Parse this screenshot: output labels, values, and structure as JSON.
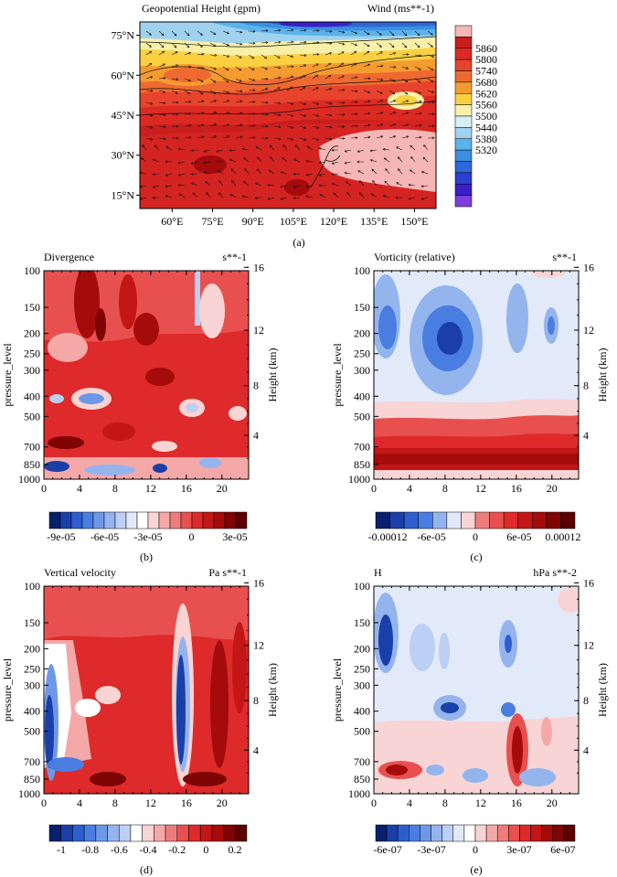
{
  "figure_labels": [
    "(a)",
    "(b)",
    "(c)",
    "(d)",
    "(e)"
  ],
  "chart_data": [
    {
      "id": "a",
      "type": "heatmap",
      "title": "Geopotential Height (gpm)",
      "title_right": "Wind (ms**-1)",
      "xlabel": "",
      "ylabel": "",
      "xlim": [
        48,
        158
      ],
      "ylim": [
        10,
        80
      ],
      "x_ticks": [
        60,
        75,
        90,
        105,
        120,
        135,
        150
      ],
      "x_tick_labels": [
        "60°E",
        "75°E",
        "90°E",
        "105°E",
        "120°E",
        "135°E",
        "150°E"
      ],
      "y_ticks": [
        15,
        30,
        45,
        60,
        75
      ],
      "y_tick_labels": [
        "15°N",
        "30°N",
        "45°N",
        "60°N",
        "75°N"
      ],
      "colorbar_labels": [
        "5860",
        "5800",
        "5740",
        "5680",
        "5620",
        "5560",
        "5500",
        "5440",
        "5380",
        "5320"
      ],
      "colorbar_colors": [
        "#f6b6b6",
        "#c81e1e",
        "#dc2a22",
        "#e8432c",
        "#ef6a30",
        "#f59c30",
        "#fbd040",
        "#f9f0a8",
        "#d6eef6",
        "#9fd2ef",
        "#5bb3ea",
        "#3c8ee0",
        "#2e68d6",
        "#2c3fd0",
        "#3a1ec8",
        "#7b3fe0"
      ],
      "contour_levels_note": "5320 to 5860 gpm every 60",
      "grid": false,
      "legend": "right"
    },
    {
      "id": "b",
      "type": "heatmap",
      "title": "Divergence",
      "title_right": "s**-1",
      "xlabel": "",
      "ylabel": "pressure_level",
      "ylabel_right": "Height (km)",
      "x": [
        0,
        4,
        8,
        12,
        16,
        20
      ],
      "xlim": [
        0,
        23
      ],
      "y_ticks": [
        100,
        150,
        200,
        250,
        300,
        400,
        500,
        700,
        850,
        1000
      ],
      "y_right_ticks": [
        4,
        8,
        12,
        16
      ],
      "colorbar_labels": [
        "-9e-05",
        "-6e-05",
        "-3e-05",
        "0",
        "3e-05"
      ],
      "colorbar_colors": [
        "#08206e",
        "#1a3fa8",
        "#2d5ed0",
        "#4a7de0",
        "#6d98e8",
        "#94b4ee",
        "#bccff4",
        "#e2eafa",
        "#ffffff",
        "#f9d4d4",
        "#f4a8a8",
        "#ef7c7c",
        "#e85050",
        "#de2a2a",
        "#c41616",
        "#a50b0b",
        "#7f0404",
        "#5c0000"
      ],
      "grid": false,
      "legend": "bottom"
    },
    {
      "id": "c",
      "type": "heatmap",
      "title": "Vorticity (relative)",
      "title_right": "s**-1",
      "xlabel": "",
      "ylabel": "pressure_level",
      "ylabel_right": "Height (km)",
      "x": [
        0,
        4,
        8,
        12,
        16,
        20
      ],
      "xlim": [
        0,
        23
      ],
      "y_ticks": [
        100,
        150,
        200,
        250,
        300,
        400,
        500,
        700,
        850,
        1000
      ],
      "y_right_ticks": [
        4,
        8,
        12,
        16
      ],
      "colorbar_labels": [
        "-0.00012",
        "-6e-05",
        "0",
        "6e-05",
        "0.00012"
      ],
      "colorbar_colors": [
        "#08206e",
        "#1a3fa8",
        "#2d5ed0",
        "#4a7de0",
        "#94b4ee",
        "#e2eafa",
        "#f9d4d4",
        "#ef7c7c",
        "#e85050",
        "#de2a2a",
        "#c41616",
        "#a50b0b",
        "#7f0404",
        "#5c0000"
      ],
      "grid": false,
      "legend": "bottom"
    },
    {
      "id": "d",
      "type": "heatmap",
      "title": "Vertical velocity",
      "title_right": "Pa s**-1",
      "xlabel": "",
      "ylabel": "pressure_level",
      "ylabel_right": "Height (km)",
      "x": [
        0,
        4,
        8,
        12,
        16,
        20
      ],
      "xlim": [
        0,
        23
      ],
      "y_ticks": [
        100,
        150,
        200,
        250,
        300,
        400,
        500,
        700,
        850,
        1000
      ],
      "y_right_ticks": [
        4,
        8,
        12,
        16
      ],
      "colorbar_labels": [
        "-1",
        "-0.8",
        "-0.6",
        "-0.4",
        "-0.2",
        "0",
        "0.2"
      ],
      "colorbar_colors": [
        "#08206e",
        "#1a3fa8",
        "#2d5ed0",
        "#4a7de0",
        "#6d98e8",
        "#94b4ee",
        "#bccff4",
        "#ffffff",
        "#f9d4d4",
        "#f4a8a8",
        "#ef7c7c",
        "#e85050",
        "#de2a2a",
        "#c41616",
        "#a50b0b",
        "#7f0404",
        "#5c0000"
      ],
      "grid": false,
      "legend": "bottom"
    },
    {
      "id": "e",
      "type": "heatmap",
      "title": "H",
      "title_right": "hPa s**-2",
      "xlabel": "",
      "ylabel": "pressure_level",
      "ylabel_right": "Height (km)",
      "x": [
        0,
        4,
        8,
        12,
        16,
        20
      ],
      "xlim": [
        0,
        23
      ],
      "y_ticks": [
        100,
        150,
        200,
        250,
        300,
        400,
        500,
        700,
        850,
        1000
      ],
      "y_right_ticks": [
        4,
        8,
        12,
        16
      ],
      "colorbar_labels": [
        "-6e-07",
        "-3e-07",
        "0",
        "3e-07",
        "6e-07"
      ],
      "colorbar_colors": [
        "#08206e",
        "#1a3fa8",
        "#2d5ed0",
        "#4a7de0",
        "#6d98e8",
        "#94b4ee",
        "#bccff4",
        "#e2eafa",
        "#ffffff",
        "#f9d4d4",
        "#f4a8a8",
        "#ef7c7c",
        "#e85050",
        "#de2a2a",
        "#c41616",
        "#a50b0b",
        "#7f0404",
        "#5c0000"
      ],
      "grid": false,
      "legend": "bottom"
    }
  ]
}
